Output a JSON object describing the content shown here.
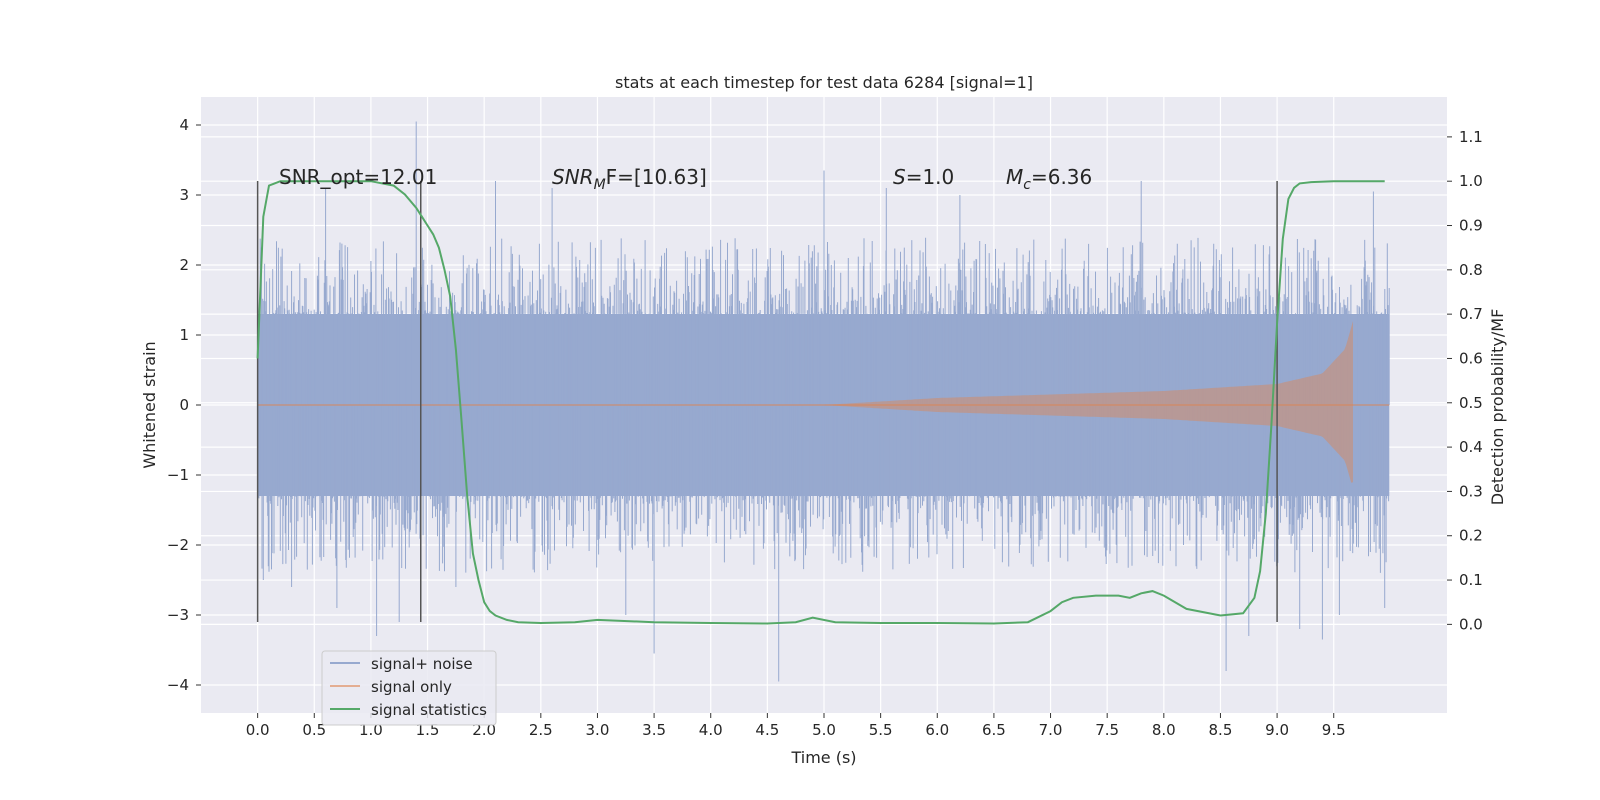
{
  "chart_data": {
    "type": "line",
    "title": "stats at each timestep for test data 6284 [signal=1]",
    "xlabel": "Time (s)",
    "ylabel_left": "Whitened strain",
    "ylabel_right": "Detection probability/MF",
    "xlim": [
      -0.5,
      10.5
    ],
    "ylim_left": [
      -4.4,
      4.4
    ],
    "ylim_right": [
      -0.2,
      1.19
    ],
    "x_ticks": [
      0.0,
      0.5,
      1.0,
      1.5,
      2.0,
      2.5,
      3.0,
      3.5,
      4.0,
      4.5,
      5.0,
      5.5,
      6.0,
      6.5,
      7.0,
      7.5,
      8.0,
      8.5,
      9.0,
      9.5
    ],
    "x_tick_labels": [
      "0.0",
      "0.5",
      "1.0",
      "1.5",
      "2.0",
      "2.5",
      "3.0",
      "3.5",
      "4.0",
      "4.5",
      "5.0",
      "5.5",
      "6.0",
      "6.5",
      "7.0",
      "7.5",
      "8.0",
      "8.5",
      "9.0",
      "9.5"
    ],
    "y_left_ticks": [
      -4,
      -3,
      -2,
      -1,
      0,
      1,
      2,
      3,
      4
    ],
    "y_left_tick_labels": [
      "−4",
      "−3",
      "−2",
      "−1",
      "0",
      "1",
      "2",
      "3",
      "4"
    ],
    "y_right_ticks": [
      0.0,
      0.1,
      0.2,
      0.3,
      0.4,
      0.5,
      0.6,
      0.7,
      0.8,
      0.9,
      1.0,
      1.1
    ],
    "y_right_tick_labels": [
      "0.0",
      "0.1",
      "0.2",
      "0.3",
      "0.4",
      "0.5",
      "0.6",
      "0.7",
      "0.8",
      "0.9",
      "1.0",
      "1.1"
    ],
    "grid": true,
    "legend_position": "lower-left",
    "colors": {
      "background": "#eaeaf2",
      "noise": "#97a9cf",
      "signal": "#dd8452",
      "statistics": "#55a868",
      "marker_lines": "#555555"
    },
    "series": [
      {
        "name": "signal+ noise",
        "kind": "noise-band",
        "x_range": [
          0.0,
          9.99
        ],
        "dense_band": [
          -1.3,
          1.3
        ],
        "envelope_typical": [
          -2.4,
          2.4
        ],
        "peaks": [
          {
            "x": 0.05,
            "y": -2.5
          },
          {
            "x": 0.3,
            "y": -2.6
          },
          {
            "x": 0.6,
            "y": 3.1
          },
          {
            "x": 0.7,
            "y": -2.9
          },
          {
            "x": 1.05,
            "y": -3.3
          },
          {
            "x": 1.25,
            "y": -3.1
          },
          {
            "x": 1.4,
            "y": 4.05
          },
          {
            "x": 1.75,
            "y": -2.6
          },
          {
            "x": 2.1,
            "y": 3.2
          },
          {
            "x": 2.6,
            "y": 3.1
          },
          {
            "x": 3.25,
            "y": -3.0
          },
          {
            "x": 3.5,
            "y": -3.55
          },
          {
            "x": 4.6,
            "y": -3.95
          },
          {
            "x": 5.0,
            "y": 3.35
          },
          {
            "x": 5.55,
            "y": 3.1
          },
          {
            "x": 6.2,
            "y": 3.0
          },
          {
            "x": 7.8,
            "y": 3.2
          },
          {
            "x": 8.55,
            "y": -3.8
          },
          {
            "x": 8.75,
            "y": -3.3
          },
          {
            "x": 9.2,
            "y": -3.2
          },
          {
            "x": 9.4,
            "y": -3.35
          },
          {
            "x": 9.55,
            "y": -3.0
          },
          {
            "x": 9.85,
            "y": 3.05
          },
          {
            "x": 9.95,
            "y": -2.9
          }
        ]
      },
      {
        "name": "signal only",
        "kind": "chirp",
        "x_range": [
          5.0,
          9.67
        ],
        "peak_x": 9.67,
        "peak_amplitude": [
          -1.15,
          1.25
        ],
        "amplitude_at_x": [
          {
            "x": 5.0,
            "a": 0.0
          },
          {
            "x": 6.0,
            "a": 0.1
          },
          {
            "x": 7.0,
            "a": 0.15
          },
          {
            "x": 8.0,
            "a": 0.2
          },
          {
            "x": 9.0,
            "a": 0.3
          },
          {
            "x": 9.4,
            "a": 0.45
          },
          {
            "x": 9.6,
            "a": 0.8
          },
          {
            "x": 9.67,
            "a": 1.2
          }
        ]
      },
      {
        "name": "signal statistics",
        "axis": "right",
        "x": [
          0.0,
          0.05,
          0.1,
          0.15,
          0.2,
          0.3,
          0.5,
          0.7,
          0.9,
          1.0,
          1.1,
          1.2,
          1.3,
          1.4,
          1.45,
          1.5,
          1.55,
          1.6,
          1.65,
          1.7,
          1.75,
          1.8,
          1.85,
          1.9,
          1.95,
          2.0,
          2.05,
          2.1,
          2.2,
          2.3,
          2.5,
          2.8,
          3.0,
          3.5,
          4.0,
          4.5,
          4.75,
          4.9,
          5.1,
          5.5,
          6.0,
          6.5,
          6.8,
          7.0,
          7.1,
          7.2,
          7.4,
          7.6,
          7.7,
          7.8,
          7.9,
          8.0,
          8.2,
          8.5,
          8.7,
          8.8,
          8.85,
          8.9,
          8.95,
          9.0,
          9.05,
          9.1,
          9.15,
          9.2,
          9.3,
          9.5,
          9.7,
          9.95
        ],
        "y": [
          0.6,
          0.92,
          0.99,
          0.995,
          1.0,
          1.0,
          1.0,
          1.0,
          1.0,
          1.0,
          0.995,
          0.99,
          0.97,
          0.94,
          0.92,
          0.9,
          0.88,
          0.85,
          0.8,
          0.74,
          0.62,
          0.46,
          0.29,
          0.16,
          0.1,
          0.05,
          0.03,
          0.02,
          0.01,
          0.005,
          0.003,
          0.005,
          0.01,
          0.005,
          0.003,
          0.002,
          0.005,
          0.015,
          0.005,
          0.003,
          0.003,
          0.002,
          0.005,
          0.03,
          0.05,
          0.06,
          0.065,
          0.065,
          0.06,
          0.07,
          0.075,
          0.065,
          0.035,
          0.02,
          0.025,
          0.06,
          0.12,
          0.25,
          0.45,
          0.68,
          0.87,
          0.96,
          0.985,
          0.995,
          0.998,
          1.0,
          1.0,
          1.0
        ]
      }
    ],
    "vertical_markers": [
      0.0,
      1.44,
      9.0
    ],
    "vertical_marker_range": [
      -3.1,
      3.2
    ],
    "annotations": [
      {
        "kind": "plain",
        "text": "SNR_opt=12.01"
      },
      {
        "kind": "math",
        "base": "SNR",
        "sub": "M",
        "tail": "F=[10.63]"
      },
      {
        "kind": "math",
        "base": "S",
        "sub": "",
        "tail": "=1.0"
      },
      {
        "kind": "math",
        "base": "M",
        "sub": "c",
        "tail": "=6.36"
      }
    ]
  }
}
